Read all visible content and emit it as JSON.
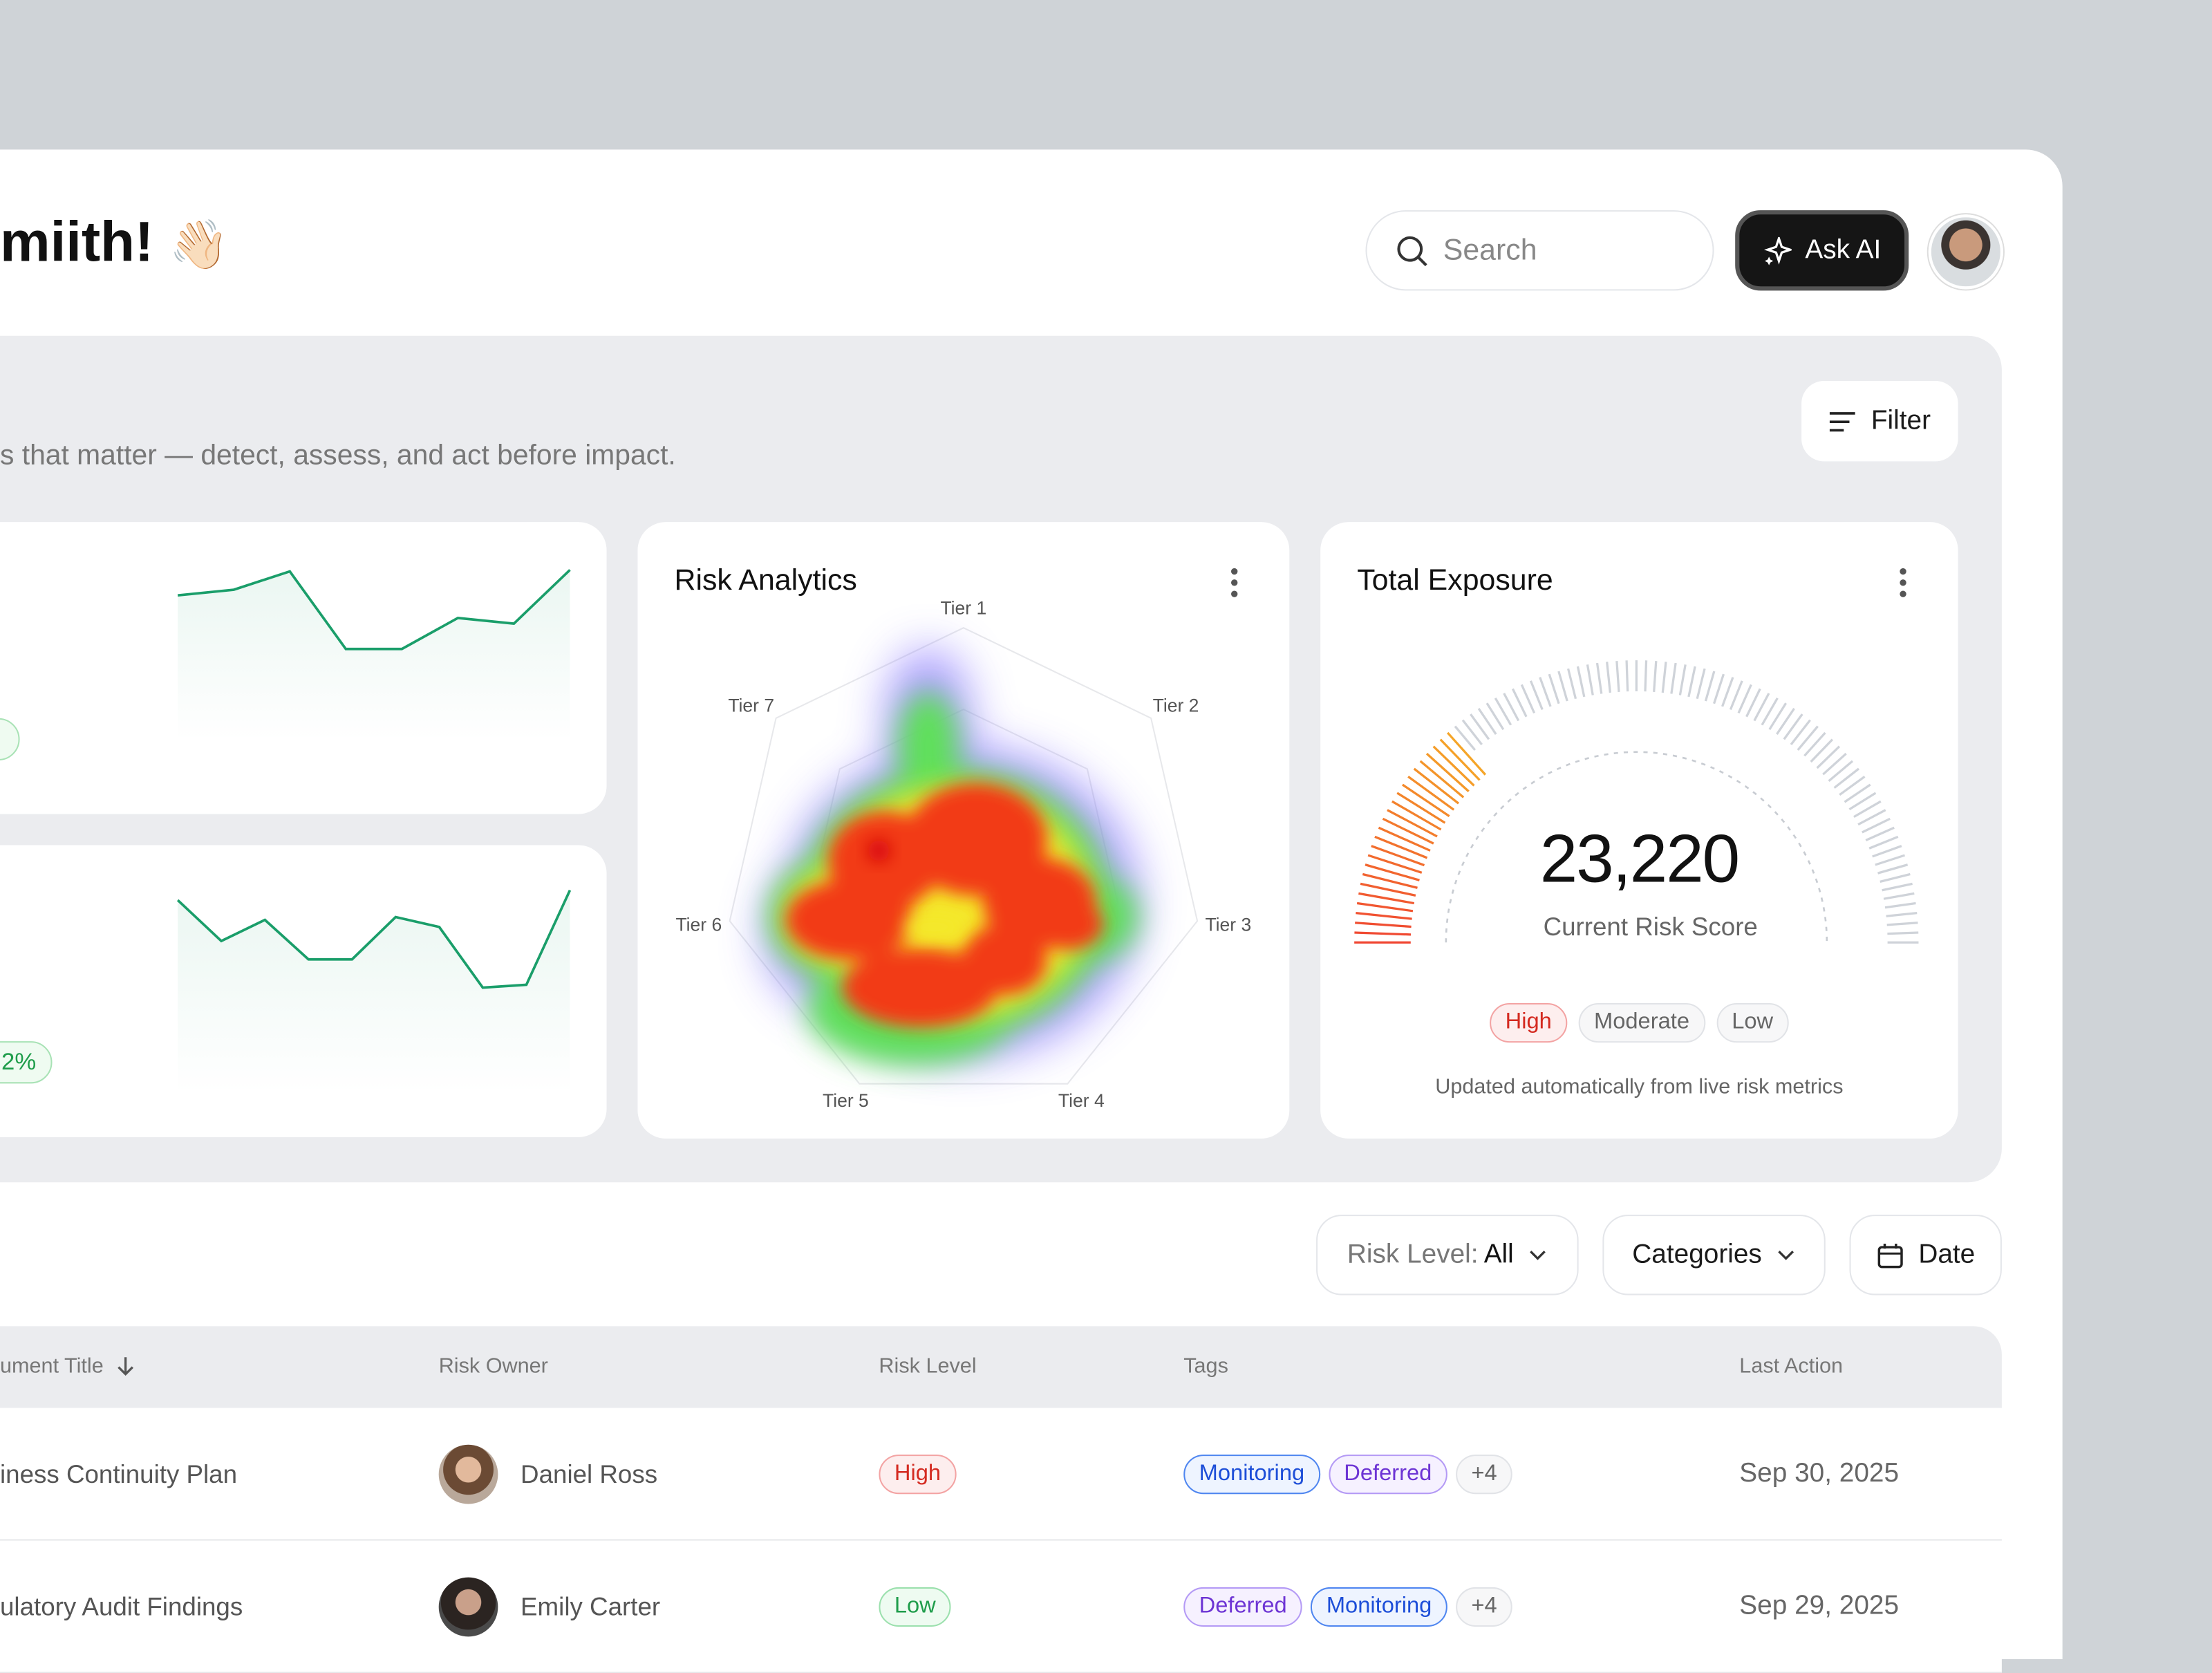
{
  "header": {
    "greeting": "miith!",
    "emoji": "👋🏻",
    "search_placeholder": "Search",
    "ask_ai": "Ask AI"
  },
  "overview": {
    "subtitle": "s that matter — detect, assess, and act before impact.",
    "filter": "Filter"
  },
  "sparklines": [
    {
      "values": [
        98,
        102,
        115,
        60,
        60,
        82,
        78,
        116
      ],
      "color": "#1a9e6a"
    },
    {
      "badge": "2%",
      "values": [
        132,
        103,
        118,
        90,
        90,
        120,
        113,
        70,
        72,
        139
      ],
      "color": "#1a9e6a"
    }
  ],
  "risk_analytics": {
    "title": "Risk Analytics",
    "tiers": [
      "Tier 1",
      "Tier 2",
      "Tier 3",
      "Tier 4",
      "Tier 5",
      "Tier 6",
      "Tier 7"
    ]
  },
  "total_exposure": {
    "title": "Total Exposure",
    "score": "23,220",
    "score_label": "Current Risk Score",
    "legend": [
      {
        "text": "High",
        "tone": "red"
      },
      {
        "text": "Moderate",
        "tone": "gray"
      },
      {
        "text": "Low",
        "tone": "gray"
      }
    ],
    "caption": "Updated automatically from live risk metrics"
  },
  "filters": {
    "risk_level_label": "Risk Level:",
    "risk_level_value": "All",
    "categories": "Categories",
    "date": "Date"
  },
  "table": {
    "headers": [
      "ument Title",
      "Risk Owner",
      "Risk Level",
      "Tags",
      "Last Action"
    ],
    "rows": [
      {
        "title": "iness Continuity Plan",
        "owner": "Daniel Ross",
        "level": {
          "text": "High",
          "tone": "red"
        },
        "tags": [
          {
            "text": "Monitoring",
            "tone": "blue"
          },
          {
            "text": "Deferred",
            "tone": "purple"
          },
          {
            "text": "+4",
            "tone": "gray"
          }
        ],
        "date": "Sep 30, 2025"
      },
      {
        "title": "ulatory Audit Findings",
        "owner": "Emily Carter",
        "level": {
          "text": "Low",
          "tone": "green"
        },
        "tags": [
          {
            "text": "Deferred",
            "tone": "purple"
          },
          {
            "text": "Monitoring",
            "tone": "blue"
          },
          {
            "text": "+4",
            "tone": "gray"
          }
        ],
        "date": "Sep 29, 2025"
      }
    ]
  }
}
